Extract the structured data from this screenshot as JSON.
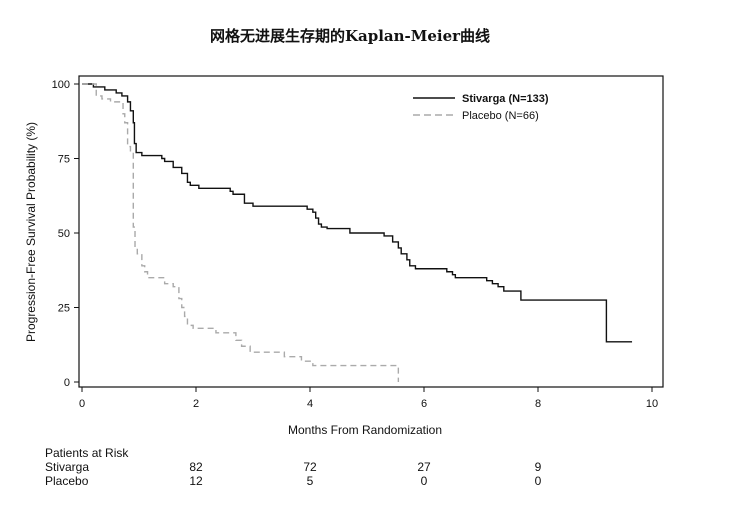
{
  "chart_data": {
    "type": "line",
    "title": "网格无进展生存期的Kaplan-Meier曲线",
    "xlabel": "Months From Randomization",
    "ylabel": "Progression-Free Survival Probability (%)",
    "xlim": [
      0,
      10
    ],
    "ylim": [
      0,
      100
    ],
    "x_ticks": [
      0,
      2,
      4,
      6,
      8,
      10
    ],
    "y_ticks": [
      0,
      25,
      50,
      75,
      100
    ],
    "grid": false,
    "legend_position": "top-right",
    "series": [
      {
        "name": "Stivarga (N=133)",
        "style": "solid",
        "color": "#111111",
        "step_points": [
          [
            0,
            100
          ],
          [
            0.2,
            99
          ],
          [
            0.4,
            98
          ],
          [
            0.6,
            97
          ],
          [
            0.7,
            96
          ],
          [
            0.8,
            94
          ],
          [
            0.85,
            91
          ],
          [
            0.9,
            87
          ],
          [
            0.92,
            80
          ],
          [
            0.95,
            77
          ],
          [
            1.05,
            76
          ],
          [
            1.4,
            75
          ],
          [
            1.45,
            74
          ],
          [
            1.6,
            72
          ],
          [
            1.75,
            70
          ],
          [
            1.85,
            67
          ],
          [
            1.9,
            66
          ],
          [
            2.05,
            65
          ],
          [
            2.6,
            64
          ],
          [
            2.65,
            63
          ],
          [
            2.85,
            60
          ],
          [
            3.0,
            59
          ],
          [
            3.95,
            58
          ],
          [
            4.05,
            57
          ],
          [
            4.1,
            55
          ],
          [
            4.15,
            53
          ],
          [
            4.2,
            52
          ],
          [
            4.3,
            51.5
          ],
          [
            4.7,
            50
          ],
          [
            5.3,
            49
          ],
          [
            5.45,
            47
          ],
          [
            5.55,
            45
          ],
          [
            5.6,
            43
          ],
          [
            5.7,
            41
          ],
          [
            5.75,
            39
          ],
          [
            5.85,
            38
          ],
          [
            6.4,
            37
          ],
          [
            6.5,
            36
          ],
          [
            6.55,
            35
          ],
          [
            7.1,
            34
          ],
          [
            7.2,
            33
          ],
          [
            7.3,
            32
          ],
          [
            7.4,
            30.5
          ],
          [
            7.7,
            27.5
          ],
          [
            9.2,
            13.5
          ],
          [
            9.65,
            13.5
          ]
        ]
      },
      {
        "name": "Placebo (N=66)",
        "style": "dashed",
        "color": "#aaaaaa",
        "step_points": [
          [
            0,
            100
          ],
          [
            0.25,
            96
          ],
          [
            0.35,
            95
          ],
          [
            0.5,
            94
          ],
          [
            0.72,
            90
          ],
          [
            0.75,
            87
          ],
          [
            0.8,
            79
          ],
          [
            0.85,
            77
          ],
          [
            0.9,
            52
          ],
          [
            0.93,
            45
          ],
          [
            0.97,
            43
          ],
          [
            1.05,
            39
          ],
          [
            1.1,
            37
          ],
          [
            1.15,
            35
          ],
          [
            1.45,
            33
          ],
          [
            1.6,
            32
          ],
          [
            1.7,
            28
          ],
          [
            1.75,
            25
          ],
          [
            1.8,
            22
          ],
          [
            1.85,
            19
          ],
          [
            1.95,
            18
          ],
          [
            2.35,
            16.5
          ],
          [
            2.7,
            14
          ],
          [
            2.8,
            12
          ],
          [
            2.95,
            10
          ],
          [
            3.55,
            8.5
          ],
          [
            3.85,
            7
          ],
          [
            4.05,
            5.5
          ],
          [
            5.55,
            5.5
          ],
          [
            5.55,
            0
          ]
        ]
      }
    ],
    "risk_table": {
      "title": "Patients at Risk",
      "time_points": [
        2,
        4,
        6,
        8
      ],
      "rows": [
        {
          "label": "Stivarga",
          "values": [
            "82",
            "72",
            "27",
            "9"
          ]
        },
        {
          "label": "Placebo",
          "values": [
            "12",
            "5",
            "0",
            "0"
          ]
        }
      ]
    }
  }
}
